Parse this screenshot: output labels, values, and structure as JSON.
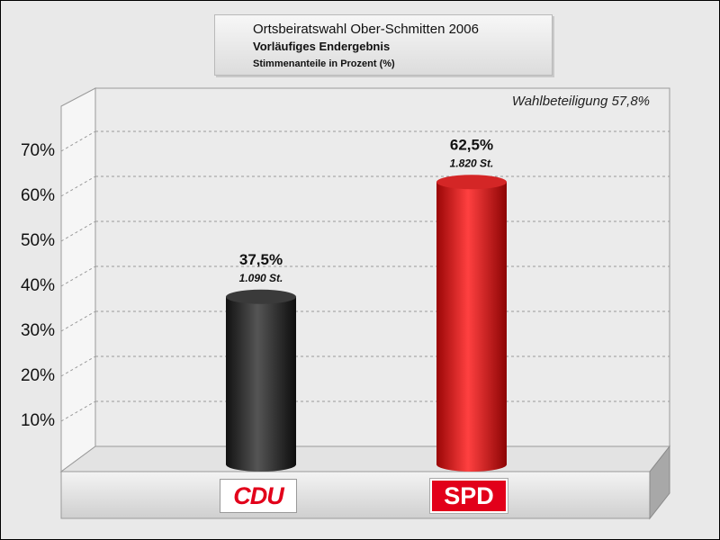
{
  "title": {
    "line1": "Ortsbeiratswahl Ober-Schmitten 2006",
    "line2": "Vorläufiges Endergebnis",
    "line3": "Stimmenanteile in Prozent (%)"
  },
  "note": "Wahlbeteiligung 57,8%",
  "colors": {
    "cdu": "#2b2b2b",
    "spd": "#e01818",
    "background": "#e9e9e9"
  },
  "chart_data": {
    "type": "bar",
    "title": "Ortsbeiratswahl Ober-Schmitten 2006",
    "subtitle": "Vorläufiges Endergebnis",
    "ylabel": "",
    "xlabel": "",
    "ylim": [
      0,
      80
    ],
    "yticks": [
      10,
      20,
      30,
      40,
      50,
      60,
      70
    ],
    "ytick_labels": [
      "10%",
      "20%",
      "30%",
      "40%",
      "50%",
      "60%",
      "70%"
    ],
    "grid": true,
    "categories": [
      "CDU",
      "SPD"
    ],
    "values": [
      37.5,
      62.5
    ],
    "value_labels": [
      "37,5%",
      "62,5%"
    ],
    "vote_labels": [
      "1.090 St.",
      "1.820 St."
    ]
  }
}
